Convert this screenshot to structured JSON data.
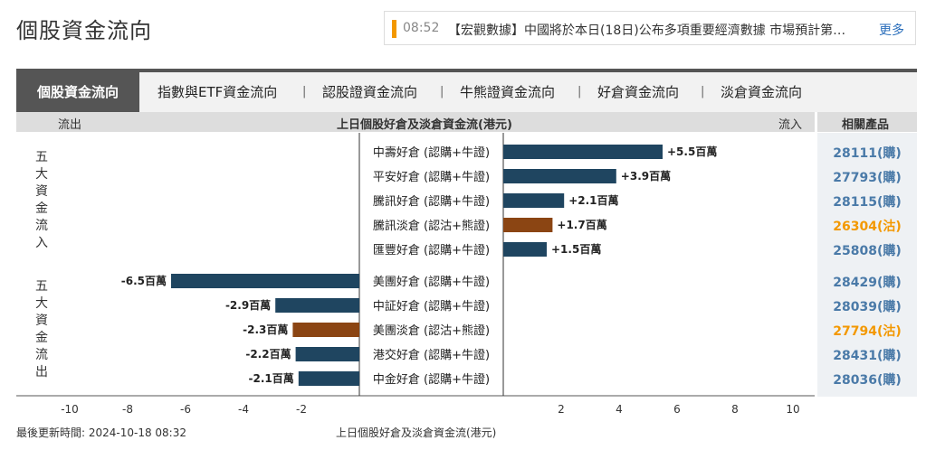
{
  "page_title": "個股資金流向",
  "ticker": {
    "time": "08:52",
    "text": "【宏觀數據】中國將於本日(18日)公布多項重要經濟數據 市場預計第…",
    "more_label": "更多"
  },
  "tabs": [
    {
      "label": "個股資金流向",
      "active": true
    },
    {
      "label": "指數與ETF資金流向",
      "active": false
    },
    {
      "label": "認股證資金流向",
      "active": false
    },
    {
      "label": "牛熊證資金流向",
      "active": false
    },
    {
      "label": "好倉資金流向",
      "active": false
    },
    {
      "label": "淡倉資金流向",
      "active": false
    }
  ],
  "tab_separator": "|",
  "header": {
    "outflow_label": "流出",
    "chart_title": "上日個股好倉及淡倉資金流(港元)",
    "inflow_label": "流入",
    "product_label": "相關產品"
  },
  "group_inflow_label": "五大資金流入",
  "group_outflow_label": "五大資金流出",
  "colors": {
    "long": "#1f4560",
    "short": "#8b4513",
    "link_call": "#4a7aa8",
    "link_put": "#f39800"
  },
  "chart_data": {
    "type": "bar",
    "orientation": "horizontal",
    "unit": "百萬",
    "xlim": [
      -11,
      11
    ],
    "x_ticks": [
      -10,
      -8,
      -6,
      -4,
      -2,
      2,
      4,
      6,
      8,
      10
    ],
    "title": "上日個股好倉及淡倉資金流(港元)",
    "inflow": [
      {
        "category": "中壽好倉 (認購+牛證)",
        "value": 5.5,
        "label": "+5.5百萬",
        "kind": "long",
        "product": "28111(購)"
      },
      {
        "category": "平安好倉 (認購+牛證)",
        "value": 3.9,
        "label": "+3.9百萬",
        "kind": "long",
        "product": "27793(購)"
      },
      {
        "category": "騰訊好倉 (認購+牛證)",
        "value": 2.1,
        "label": "+2.1百萬",
        "kind": "long",
        "product": "28115(購)"
      },
      {
        "category": "騰訊淡倉 (認沽+熊證)",
        "value": 1.7,
        "label": "+1.7百萬",
        "kind": "short",
        "product": "26304(沽)"
      },
      {
        "category": "匯豐好倉 (認購+牛證)",
        "value": 1.5,
        "label": "+1.5百萬",
        "kind": "long",
        "product": "25808(購)"
      }
    ],
    "outflow": [
      {
        "category": "美團好倉 (認購+牛證)",
        "value": -6.5,
        "label": "-6.5百萬",
        "kind": "long",
        "product": "28429(購)"
      },
      {
        "category": "中証好倉 (認購+牛證)",
        "value": -2.9,
        "label": "-2.9百萬",
        "kind": "long",
        "product": "28039(購)"
      },
      {
        "category": "美團淡倉 (認沽+熊證)",
        "value": -2.3,
        "label": "-2.3百萬",
        "kind": "short",
        "product": "27794(沽)"
      },
      {
        "category": "港交好倉 (認購+牛證)",
        "value": -2.2,
        "label": "-2.2百萬",
        "kind": "long",
        "product": "28431(購)"
      },
      {
        "category": "中金好倉 (認購+牛證)",
        "value": -2.1,
        "label": "-2.1百萬",
        "kind": "long",
        "product": "28036(購)"
      }
    ]
  },
  "footer": {
    "updated": "最後更新時間: 2024-10-18 08:32",
    "axis_caption": "上日個股好倉及淡倉資金流(港元)"
  }
}
